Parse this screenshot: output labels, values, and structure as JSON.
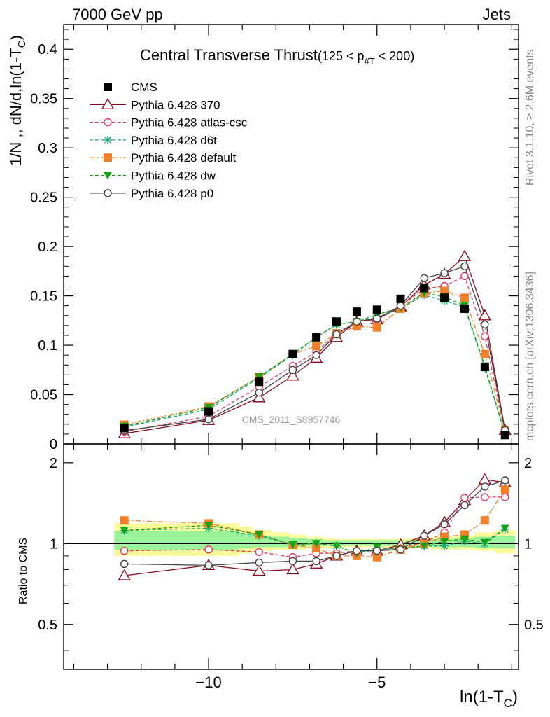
{
  "header": {
    "left": "7000 GeV pp",
    "right": "Jets"
  },
  "side": {
    "rivet": "Rivet 3.1.10, ≥ 2.6M events",
    "mcplots": "mcplots.cern.ch [arXiv:1306.3436]"
  },
  "chart_data": {
    "type": "scatter",
    "title": "Central Transverse Thrust",
    "title_suffix_parts": [
      "(125 < p",
      "#T",
      " < 200)"
    ],
    "watermark": "CMS_2011_S8957746",
    "xlabel_parts": [
      "ln(1-T",
      "C",
      ")"
    ],
    "ylabel_parts": [
      "1/N ,, dN/d,ln(1-T",
      "C",
      ")"
    ],
    "ratio_ylabel": "Ratio to CMS",
    "xlim": [
      -14.3,
      -0.8
    ],
    "ylim": [
      0,
      0.425
    ],
    "ratio_ylim": [
      0.34,
      2.35
    ],
    "x_ticks": [
      -10,
      -5
    ],
    "x_tick_labels": [
      "−10",
      "−5"
    ],
    "y_ticks": [
      0,
      0.05,
      0.1,
      0.15,
      0.2,
      0.25,
      0.3,
      0.35,
      0.4
    ],
    "y_tick_labels": [
      "0",
      "0.05",
      "0.1",
      "0.15",
      "0.2",
      "0.25",
      "0.3",
      "0.35",
      "0.4"
    ],
    "ratio_ticks": [
      0.5,
      1,
      2
    ],
    "ratio_tick_labels": [
      "0.5",
      "1",
      "2"
    ],
    "x": [
      -12.5,
      -10.0,
      -8.5,
      -7.5,
      -6.8,
      -6.2,
      -5.6,
      -5.0,
      -4.3,
      -3.6,
      -3.0,
      -2.4,
      -1.8,
      -1.2
    ],
    "data_bands_x": [
      -12.8,
      -9.1,
      -8.7,
      -8.1,
      -7.6,
      -7.1,
      -6.6,
      -6.2,
      -5.9,
      -5.3,
      -4.6,
      -4.0,
      -3.4,
      -2.7,
      -2.1,
      -1.5,
      -0.9
    ],
    "data_band_outer_lo": [
      0.9,
      0.92,
      0.94,
      0.95,
      0.95,
      0.96,
      0.96,
      0.97,
      0.97,
      0.97,
      0.96,
      0.96,
      0.95,
      0.95,
      0.94,
      0.92
    ],
    "data_band_outer_hi": [
      1.19,
      1.16,
      1.12,
      1.1,
      1.08,
      1.06,
      1.05,
      1.04,
      1.04,
      1.04,
      1.04,
      1.05,
      1.06,
      1.07,
      1.1,
      1.12
    ],
    "data_band_inner_lo": [
      0.95,
      0.96,
      0.97,
      0.97,
      0.97,
      0.98,
      0.98,
      0.98,
      0.98,
      0.98,
      0.98,
      0.98,
      0.97,
      0.97,
      0.96,
      0.96
    ],
    "data_band_inner_hi": [
      1.11,
      1.09,
      1.07,
      1.06,
      1.05,
      1.04,
      1.03,
      1.03,
      1.03,
      1.03,
      1.03,
      1.03,
      1.04,
      1.05,
      1.06,
      1.07
    ],
    "series": [
      {
        "name": "CMS",
        "color": "#000000",
        "marker": "square-filled",
        "line": "none",
        "values": [
          0.016,
          0.033,
          0.063,
          0.091,
          0.108,
          0.124,
          0.134,
          0.136,
          0.147,
          0.158,
          0.148,
          0.137,
          0.078,
          0.009
        ]
      },
      {
        "name": "Pythia 6.428 370",
        "color": "#8b0f1e",
        "marker": "triangle-open",
        "line": "solid",
        "values": [
          0.0105,
          0.024,
          0.047,
          0.069,
          0.087,
          0.108,
          0.124,
          0.126,
          0.139,
          0.161,
          0.172,
          0.19,
          0.13,
          0.014
        ]
      },
      {
        "name": "Pythia 6.428 atlas-csc",
        "color": "#e8375a",
        "marker": "circle-open",
        "line": "dashed",
        "values": [
          0.0125,
          0.028,
          0.058,
          0.079,
          0.093,
          0.112,
          0.124,
          0.126,
          0.14,
          0.157,
          0.16,
          0.17,
          0.109,
          0.013
        ]
      },
      {
        "name": "Pythia 6.428 d6t",
        "color": "#1aaa7a",
        "marker": "asterisk",
        "line": "dashed",
        "values": [
          0.017,
          0.035,
          0.067,
          0.09,
          0.108,
          0.121,
          0.124,
          0.128,
          0.137,
          0.151,
          0.145,
          0.139,
          0.077,
          0.01
        ]
      },
      {
        "name": "Pythia 6.428 default",
        "color": "#f0802a",
        "marker": "square-filled",
        "line": "dashdot",
        "values": [
          0.0195,
          0.038,
          0.068,
          0.091,
          0.099,
          0.112,
          0.119,
          0.118,
          0.137,
          0.153,
          0.155,
          0.148,
          0.091,
          0.014
        ]
      },
      {
        "name": "Pythia 6.428 dw",
        "color": "#17a317",
        "marker": "triangle-down-filled",
        "line": "dashed",
        "values": [
          0.018,
          0.037,
          0.068,
          0.091,
          0.108,
          0.121,
          0.124,
          0.131,
          0.138,
          0.153,
          0.149,
          0.14,
          0.079,
          0.01
        ]
      },
      {
        "name": "Pythia 6.428 p0",
        "color": "#444444",
        "marker": "circle-open",
        "line": "solid",
        "values": [
          0.0135,
          0.025,
          0.052,
          0.075,
          0.09,
          0.111,
          0.124,
          0.127,
          0.14,
          0.168,
          0.173,
          0.18,
          0.121,
          0.014
        ]
      }
    ],
    "ratios": [
      [
        1,
        1,
        1,
        1,
        1,
        1,
        1,
        1,
        1,
        1,
        1,
        1,
        1,
        1
      ],
      [
        0.76,
        0.83,
        0.79,
        0.8,
        0.84,
        0.9,
        0.94,
        0.94,
        0.99,
        1.07,
        1.2,
        1.45,
        1.73,
        1.69
      ],
      [
        0.94,
        0.95,
        0.93,
        0.89,
        0.92,
        0.92,
        0.94,
        0.94,
        0.96,
        1.01,
        1.1,
        1.48,
        1.49,
        1.49
      ],
      [
        1.12,
        1.14,
        1.07,
        0.99,
        1.0,
        0.98,
        0.92,
        0.95,
        0.96,
        0.98,
        0.98,
        1.02,
        1.0,
        1.13
      ],
      [
        1.22,
        1.19,
        1.08,
        0.99,
        0.96,
        0.9,
        0.9,
        0.89,
        0.95,
        1.0,
        1.06,
        1.08,
        1.22,
        1.59
      ],
      [
        1.12,
        1.17,
        1.08,
        0.99,
        1.0,
        0.98,
        0.92,
        0.97,
        0.95,
        0.98,
        1.02,
        1.04,
        1.01,
        1.14
      ],
      [
        0.84,
        0.83,
        0.85,
        0.86,
        0.86,
        0.9,
        0.94,
        0.94,
        0.95,
        1.07,
        1.18,
        1.39,
        1.63,
        1.72
      ]
    ],
    "legend_position": "top-left"
  }
}
